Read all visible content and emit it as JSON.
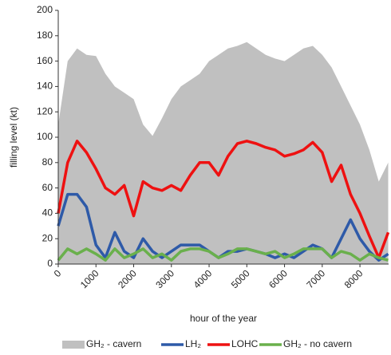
{
  "chart_data": {
    "type": "area_line",
    "x_label": "hour of the year",
    "y_label": "filling level (kt)",
    "x": [
      0,
      250,
      500,
      750,
      1000,
      1250,
      1500,
      1750,
      2000,
      2250,
      2500,
      2750,
      3000,
      3250,
      3500,
      3750,
      4000,
      4250,
      4500,
      4750,
      5000,
      5250,
      5500,
      5750,
      6000,
      6250,
      6500,
      6750,
      7000,
      7250,
      7500,
      7750,
      8000,
      8250,
      8500,
      8750
    ],
    "xlim": [
      0,
      8760
    ],
    "xticks": [
      0,
      1000,
      2000,
      3000,
      4000,
      5000,
      6000,
      7000,
      8000
    ],
    "ylim": [
      0,
      200
    ],
    "yticks": [
      0,
      20,
      40,
      60,
      80,
      100,
      120,
      140,
      160,
      180,
      200
    ],
    "grid": false,
    "legend": "bottom",
    "series": [
      {
        "name": "GH₂ - cavern",
        "color": "#c0c0c0",
        "style": "area",
        "values": [
          110,
          160,
          170,
          165,
          164,
          150,
          140,
          135,
          130,
          110,
          101,
          115,
          130,
          140,
          145,
          150,
          160,
          165,
          170,
          172,
          175,
          170,
          165,
          162,
          160,
          165,
          170,
          172,
          165,
          155,
          140,
          125,
          110,
          90,
          65,
          80
        ]
      },
      {
        "name": "LH₂",
        "color": "#2e5aa8",
        "style": "line",
        "values": [
          30,
          55,
          55,
          45,
          15,
          5,
          25,
          10,
          5,
          20,
          10,
          5,
          10,
          15,
          15,
          15,
          10,
          5,
          10,
          10,
          12,
          10,
          8,
          5,
          8,
          5,
          10,
          15,
          12,
          5,
          20,
          35,
          20,
          10,
          3,
          8
        ]
      },
      {
        "name": "LOHC",
        "color": "#ee1111",
        "style": "line",
        "values": [
          40,
          80,
          97,
          88,
          75,
          60,
          55,
          62,
          38,
          65,
          60,
          58,
          62,
          58,
          70,
          80,
          80,
          70,
          85,
          95,
          97,
          95,
          92,
          90,
          85,
          87,
          90,
          96,
          88,
          65,
          78,
          55,
          40,
          22,
          5,
          25
        ]
      },
      {
        "name": "GH₂ - no cavern",
        "color": "#6ab04c",
        "style": "line",
        "values": [
          3,
          12,
          8,
          12,
          8,
          3,
          12,
          5,
          8,
          12,
          5,
          8,
          3,
          10,
          12,
          12,
          10,
          5,
          8,
          12,
          12,
          10,
          8,
          10,
          5,
          8,
          12,
          12,
          12,
          5,
          10,
          8,
          3,
          8,
          5,
          3
        ]
      }
    ]
  }
}
